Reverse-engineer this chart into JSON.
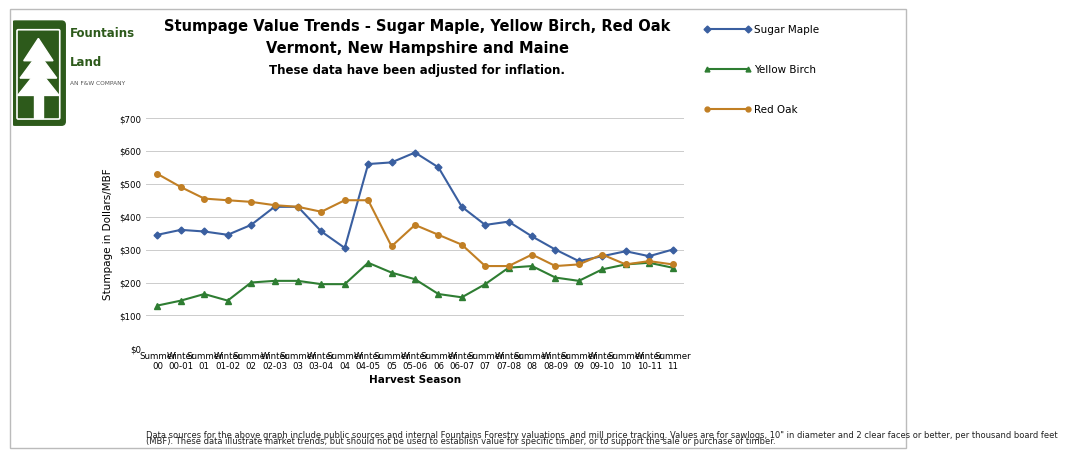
{
  "title_line1": "Stumpage Value Trends - Sugar Maple, Yellow Birch, Red Oak",
  "title_line2": "Vermont, New Hampshire and Maine",
  "subtitle": "These data have been adjusted for inflation.",
  "xlabel": "Harvest Season",
  "ylabel": "Stumpage in Dollars/MBF",
  "footnote_line1": "Data sources for the above graph include public sources and internal Fountains Forestry valuations  and mill price tracking. Values are for sawlogs, 10\" in diameter and 2 clear faces or better, per thousand board feet",
  "footnote_line2": "(MBF). These data illustrate market trends, but should not be used to establish value for specific timber, or to support the sale or purchase of timber.",
  "categories": [
    "Summer\n00",
    "Winter\n00-01",
    "Summer\n01",
    "Winter\n01-02",
    "Summer\n02",
    "Winter\n02-03",
    "Summer\n03",
    "Winter\n03-04",
    "Summer\n04",
    "Winter\n04-05",
    "Summer\n05",
    "Winter\n05-06",
    "Summer\n06",
    "Winter\n06-07",
    "Summer\n07",
    "Winter\n07-08",
    "Summer\n08",
    "Winter\n08-09",
    "Summer\n09",
    "Winter\n09-10",
    "Summer\n10",
    "Winter\n10-11",
    "Summer\n11"
  ],
  "sugar_maple": [
    345,
    360,
    355,
    345,
    375,
    430,
    430,
    355,
    305,
    560,
    565,
    595,
    550,
    430,
    375,
    385,
    340,
    300,
    265,
    280,
    295,
    280,
    300
  ],
  "yellow_birch": [
    130,
    145,
    165,
    145,
    200,
    205,
    205,
    195,
    195,
    260,
    230,
    210,
    165,
    155,
    195,
    245,
    250,
    215,
    205,
    240,
    255,
    260,
    245
  ],
  "red_oak": [
    530,
    490,
    455,
    450,
    445,
    435,
    430,
    415,
    450,
    450,
    310,
    375,
    345,
    315,
    250,
    250,
    285,
    250,
    255,
    285,
    255,
    265,
    255
  ],
  "sugar_maple_color": "#3a5fa0",
  "yellow_birch_color": "#2e7d32",
  "red_oak_color": "#c17f24",
  "ylim": [
    0,
    700
  ],
  "yticks": [
    0,
    100,
    200,
    300,
    400,
    500,
    600,
    700
  ],
  "background_color": "#ffffff",
  "grid_color": "#cccccc",
  "title_fontsize": 10.5,
  "subtitle_fontsize": 8.5,
  "axis_label_fontsize": 7.5,
  "tick_fontsize": 6.2,
  "legend_fontsize": 7.5,
  "footnote_fontsize": 6.0,
  "logo_shield_color": "#2d5a1b",
  "logo_text_color": "#2d5a1b",
  "logo_subtext_color": "#555555"
}
